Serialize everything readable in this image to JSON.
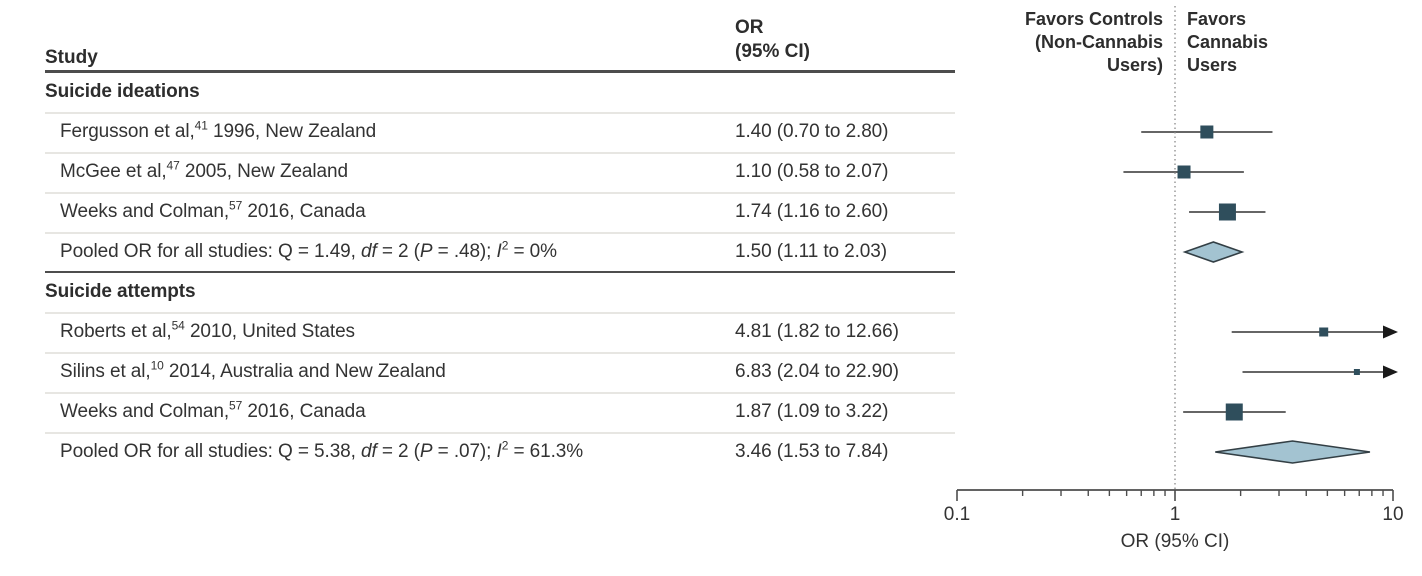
{
  "header": {
    "study_col": "Study",
    "or_line1": "OR",
    "or_line2": "(95% CI)"
  },
  "plot_header": {
    "left": [
      "Favors Controls",
      "(Non-Cannabis",
      "Users)"
    ],
    "right": [
      "Favors",
      "Cannabis",
      "Users"
    ]
  },
  "colors": {
    "text": "#333333",
    "marker": "#2f4e5c",
    "diamond_fill": "#a3c3d1",
    "diamond_stroke": "#333f45",
    "ci_line": "#666666",
    "axis": "#4d4d4d",
    "rule_dark": "#4d4d4d",
    "rule_light": "#e7e6e2",
    "ref_line": "#8a8a8a",
    "arrow": "#1a1a1a"
  },
  "chart_data": {
    "type": "forest",
    "x_scale": "log",
    "xlim": [
      0.1,
      10
    ],
    "x_ticks": [
      0.1,
      1,
      10
    ],
    "x_tick_labels": [
      "0.1",
      "1",
      "10"
    ],
    "x_minor_ticks": [
      0.2,
      0.3,
      0.4,
      0.5,
      0.6,
      0.7,
      0.8,
      0.9,
      2,
      3,
      4,
      5,
      6,
      7,
      8,
      9
    ],
    "reference_line": 1,
    "xlabel": "OR (95% CI)",
    "rows": [
      {
        "type": "subheader",
        "segments": [
          {
            "t": "Suicide ideations"
          }
        ]
      },
      {
        "type": "study",
        "segments": [
          {
            "t": "Fergusson et al,"
          },
          {
            "t": "41",
            "sup": 1
          },
          {
            "t": " 1996, New Zealand"
          }
        ],
        "or_text": "1.40 (0.70 to 2.80)",
        "or": 1.4,
        "lo": 0.7,
        "hi": 2.8,
        "m": 13
      },
      {
        "type": "study",
        "segments": [
          {
            "t": "McGee et al,"
          },
          {
            "t": "47",
            "sup": 1
          },
          {
            "t": " 2005, New Zealand"
          }
        ],
        "or_text": "1.10 (0.58 to 2.07)",
        "or": 1.1,
        "lo": 0.58,
        "hi": 2.07,
        "m": 13
      },
      {
        "type": "study",
        "segments": [
          {
            "t": "Weeks and Colman,"
          },
          {
            "t": "57",
            "sup": 1
          },
          {
            "t": " 2016, Canada"
          }
        ],
        "or_text": "1.74 (1.16 to 2.60)",
        "or": 1.74,
        "lo": 1.16,
        "hi": 2.6,
        "m": 17
      },
      {
        "type": "pooled",
        "segments": [
          {
            "t": "Pooled OR for all studies: Q = 1.49, "
          },
          {
            "t": "df",
            "i": 1
          },
          {
            "t": " = 2 ("
          },
          {
            "t": "P",
            "i": 1
          },
          {
            "t": " = .48); "
          },
          {
            "t": "I",
            "i": 1
          },
          {
            "t": "2",
            "sup": 1
          },
          {
            "t": " = 0%"
          }
        ],
        "or_text": "1.50 (1.11 to 2.03)",
        "or": 1.5,
        "lo": 1.11,
        "hi": 2.03,
        "h": 10
      },
      {
        "type": "divider"
      },
      {
        "type": "subheader",
        "segments": [
          {
            "t": "Suicide attempts"
          }
        ]
      },
      {
        "type": "study",
        "segments": [
          {
            "t": "Roberts et al,"
          },
          {
            "t": "54",
            "sup": 1
          },
          {
            "t": " 2010, United States"
          }
        ],
        "or_text": "4.81 (1.82 to 12.66)",
        "or": 4.81,
        "lo": 1.82,
        "hi": 12.66,
        "m": 9,
        "arrow": true
      },
      {
        "type": "study",
        "segments": [
          {
            "t": "Silins et al,"
          },
          {
            "t": "10",
            "sup": 1
          },
          {
            "t": " 2014, Australia and New Zealand"
          }
        ],
        "or_text": "6.83 (2.04 to 22.90)",
        "or": 6.83,
        "lo": 2.04,
        "hi": 22.9,
        "m": 6,
        "arrow": true
      },
      {
        "type": "study",
        "segments": [
          {
            "t": "Weeks and Colman,"
          },
          {
            "t": "57",
            "sup": 1
          },
          {
            "t": " 2016, Canada"
          }
        ],
        "or_text": "1.87 (1.09 to 3.22)",
        "or": 1.87,
        "lo": 1.09,
        "hi": 3.22,
        "m": 17
      },
      {
        "type": "pooled",
        "segments": [
          {
            "t": "Pooled OR for all studies: Q = 5.38, "
          },
          {
            "t": "df",
            "i": 1
          },
          {
            "t": " = 2 ("
          },
          {
            "t": "P",
            "i": 1
          },
          {
            "t": " = .07); "
          },
          {
            "t": "I",
            "i": 1
          },
          {
            "t": "2",
            "sup": 1
          },
          {
            "t": " = 61.3%"
          }
        ],
        "or_text": "3.46 (1.53 to 7.84)",
        "or": 3.46,
        "lo": 1.53,
        "hi": 7.84,
        "h": 11
      }
    ]
  }
}
